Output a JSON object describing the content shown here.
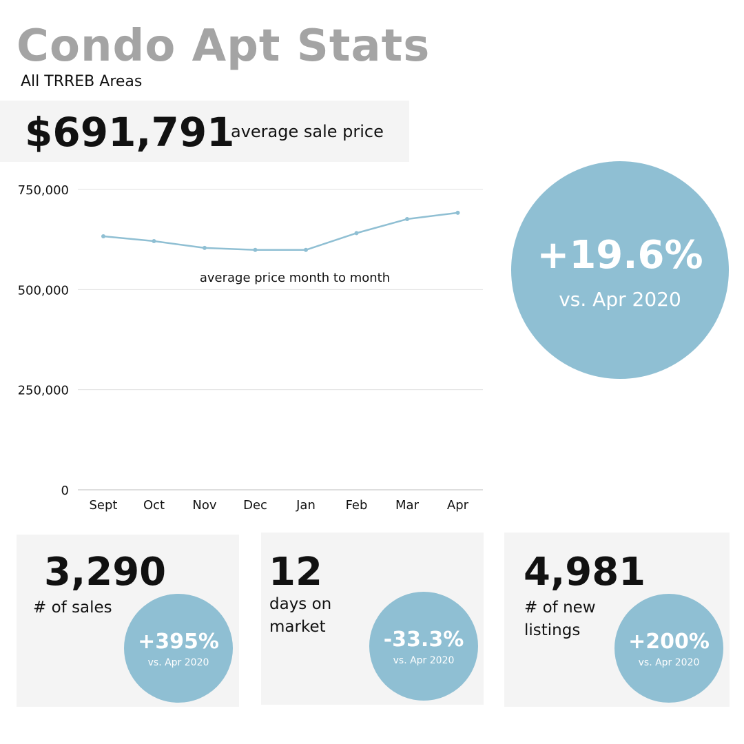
{
  "header": {
    "title": "Condo Apt Stats",
    "subtitle": "All TRREB Areas"
  },
  "average_price": {
    "value": "$691,791",
    "label": "average sale price"
  },
  "big_change": {
    "pct": "+19.6%",
    "vs": "vs. Apr 2020"
  },
  "chart_data": {
    "type": "line",
    "annotation": "average price month to month",
    "categories": [
      "Sept",
      "Oct",
      "Nov",
      "Dec",
      "Jan",
      "Feb",
      "Mar",
      "Apr"
    ],
    "values": [
      633000,
      621000,
      604000,
      599000,
      599000,
      641000,
      676000,
      691791
    ],
    "ylim": [
      0,
      750000
    ],
    "yticks": [
      0,
      250000,
      500000,
      750000
    ],
    "ytick_labels": [
      "0",
      "250,000",
      "500,000",
      "750,000"
    ],
    "grid": true,
    "colors": {
      "line": "#8fbfd3",
      "grid": "#e0e0e0",
      "axis": "#bdbdbd"
    }
  },
  "cards": [
    {
      "value": "3,290",
      "label_lines": [
        "# of sales"
      ],
      "pct": "+395%",
      "vs": "vs. Apr 2020"
    },
    {
      "value": "12",
      "label_lines": [
        "days on",
        "market"
      ],
      "pct": "-33.3%",
      "vs": "vs. Apr 2020"
    },
    {
      "value": "4,981",
      "label_lines": [
        "# of new",
        "listings"
      ],
      "pct": "+200%",
      "vs": "vs. Apr 2020"
    }
  ],
  "colors": {
    "accent": "#8fbfd3",
    "title_gray": "#a4a4a4",
    "panel_bg": "#f4f4f4"
  }
}
